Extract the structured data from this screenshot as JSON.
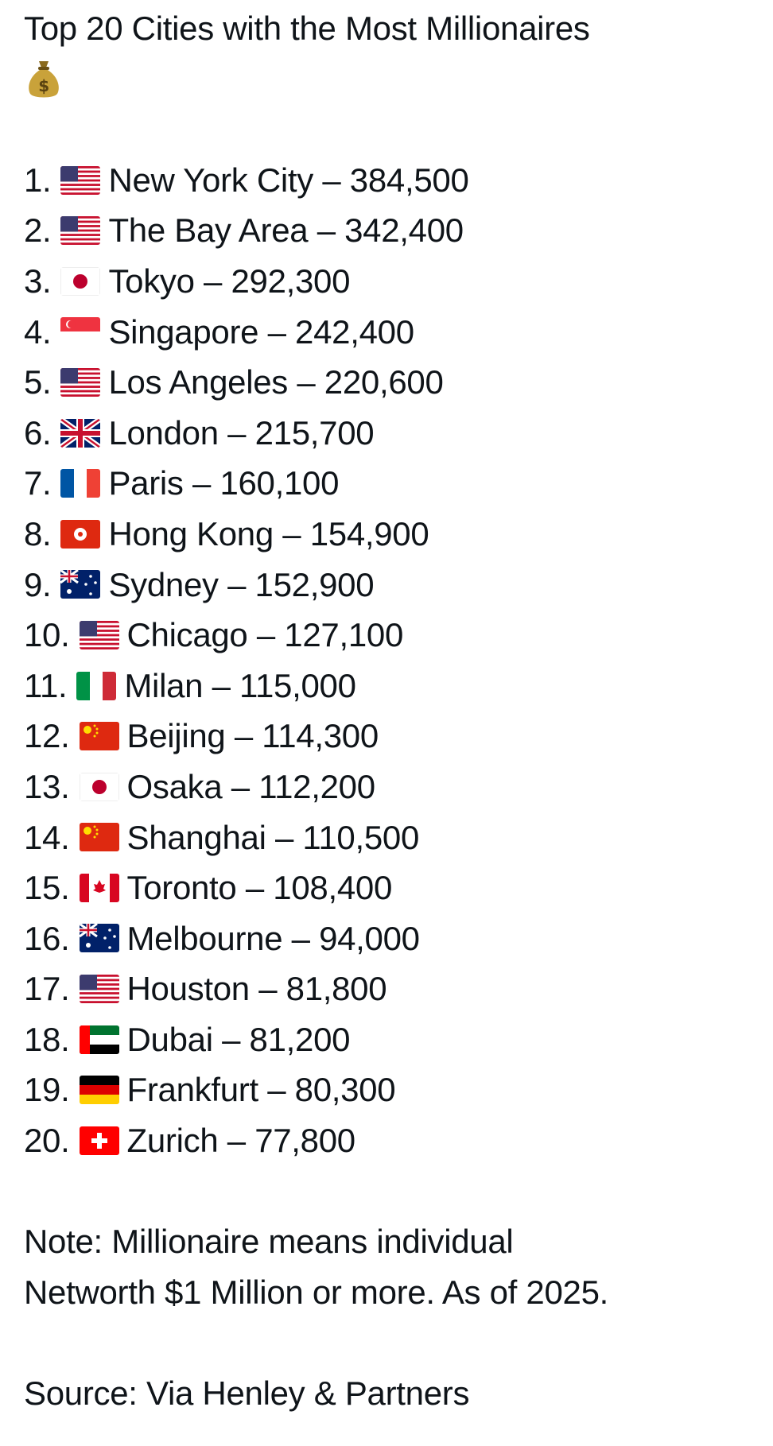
{
  "post": {
    "title": "Top 20 Cities with the Most Millionaires",
    "title_icon": "money-bag-icon",
    "items": [
      {
        "rank": "1.",
        "flag": "us",
        "city": "New York City",
        "count": "384,500"
      },
      {
        "rank": "2.",
        "flag": "us",
        "city": "The Bay Area",
        "count": "342,400"
      },
      {
        "rank": "3.",
        "flag": "jp",
        "city": "Tokyo",
        "count": "292,300"
      },
      {
        "rank": "4.",
        "flag": "sg",
        "city": "Singapore",
        "count": "242,400"
      },
      {
        "rank": "5.",
        "flag": "us",
        "city": "Los Angeles",
        "count": "220,600"
      },
      {
        "rank": "6.",
        "flag": "gb",
        "city": "London",
        "count": "215,700"
      },
      {
        "rank": "7.",
        "flag": "fr",
        "city": "Paris",
        "count": "160,100"
      },
      {
        "rank": "8.",
        "flag": "hk",
        "city": "Hong Kong",
        "count": "154,900"
      },
      {
        "rank": "9.",
        "flag": "au",
        "city": "Sydney",
        "count": "152,900"
      },
      {
        "rank": "10.",
        "flag": "us",
        "city": "Chicago",
        "count": "127,100"
      },
      {
        "rank": "11.",
        "flag": "it",
        "city": "Milan",
        "count": "115,000"
      },
      {
        "rank": "12.",
        "flag": "cn",
        "city": "Beijing",
        "count": "114,300"
      },
      {
        "rank": "13.",
        "flag": "jp",
        "city": "Osaka",
        "count": "112,200"
      },
      {
        "rank": "14.",
        "flag": "cn",
        "city": "Shanghai",
        "count": "110,500"
      },
      {
        "rank": "15.",
        "flag": "ca",
        "city": "Toronto",
        "count": "108,400"
      },
      {
        "rank": "16.",
        "flag": "au",
        "city": "Melbourne",
        "count": "94,000"
      },
      {
        "rank": "17.",
        "flag": "us",
        "city": "Houston",
        "count": "81,800"
      },
      {
        "rank": "18.",
        "flag": "ae",
        "city": "Dubai",
        "count": "81,200"
      },
      {
        "rank": "19.",
        "flag": "de",
        "city": "Frankfurt",
        "count": "80,300"
      },
      {
        "rank": "20.",
        "flag": "ch",
        "city": "Zurich",
        "count": "77,800"
      }
    ],
    "separator": " – ",
    "note_line1": "Note: Millionaire means individual",
    "note_line2": "Networth $1 Million or more. As of 2025.",
    "source": "Source: Via Henley & Partners"
  }
}
